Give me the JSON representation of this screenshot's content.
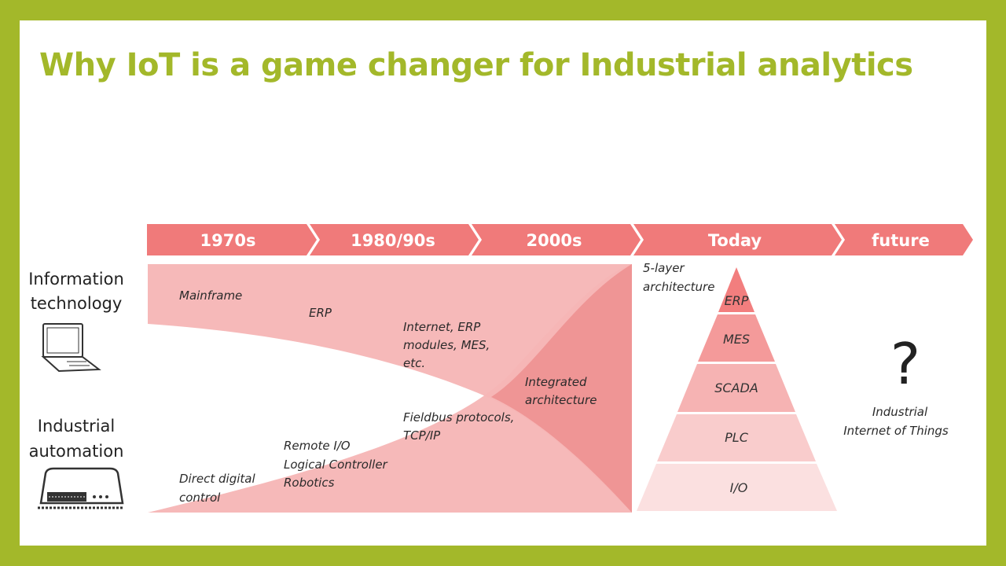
{
  "title": "Why IoT is a game changer for Industrial analytics",
  "colors": {
    "frame": "#a3b82a",
    "accent": "#f07a7a",
    "band": "#f6b5b5",
    "band_dark": "#ef9595"
  },
  "side_labels": {
    "it_line1": "Information",
    "it_line2": "technology",
    "ia_line1": "Industrial",
    "ia_line2": "automation"
  },
  "eras": [
    "1970s",
    "1980/90s",
    "2000s",
    "Today",
    "future"
  ],
  "it_notes": {
    "mainframe": "Mainframe",
    "erp": "ERP",
    "internet_1": "Internet, ERP",
    "internet_2": "modules, MES,",
    "internet_3": "etc."
  },
  "ia_notes": {
    "ddc_1": "Direct digital",
    "ddc_2": "control",
    "rio_1": "Remote I/O",
    "rio_2": "Logical Controller",
    "rio_3": "Robotics",
    "fb_1": "Fieldbus protocols,",
    "fb_2": "TCP/IP"
  },
  "integrated": {
    "line1": "Integrated",
    "line2": "architecture"
  },
  "pyramid": {
    "caption_1": "5-layer",
    "caption_2": "architecture",
    "layers": [
      "ERP",
      "MES",
      "SCADA",
      "PLC",
      "I/O"
    ]
  },
  "future": {
    "symbol": "?",
    "line1": "Industrial",
    "line2": "Internet of Things"
  },
  "icons": {
    "laptop": "laptop-icon",
    "device": "industrial-device-icon"
  }
}
